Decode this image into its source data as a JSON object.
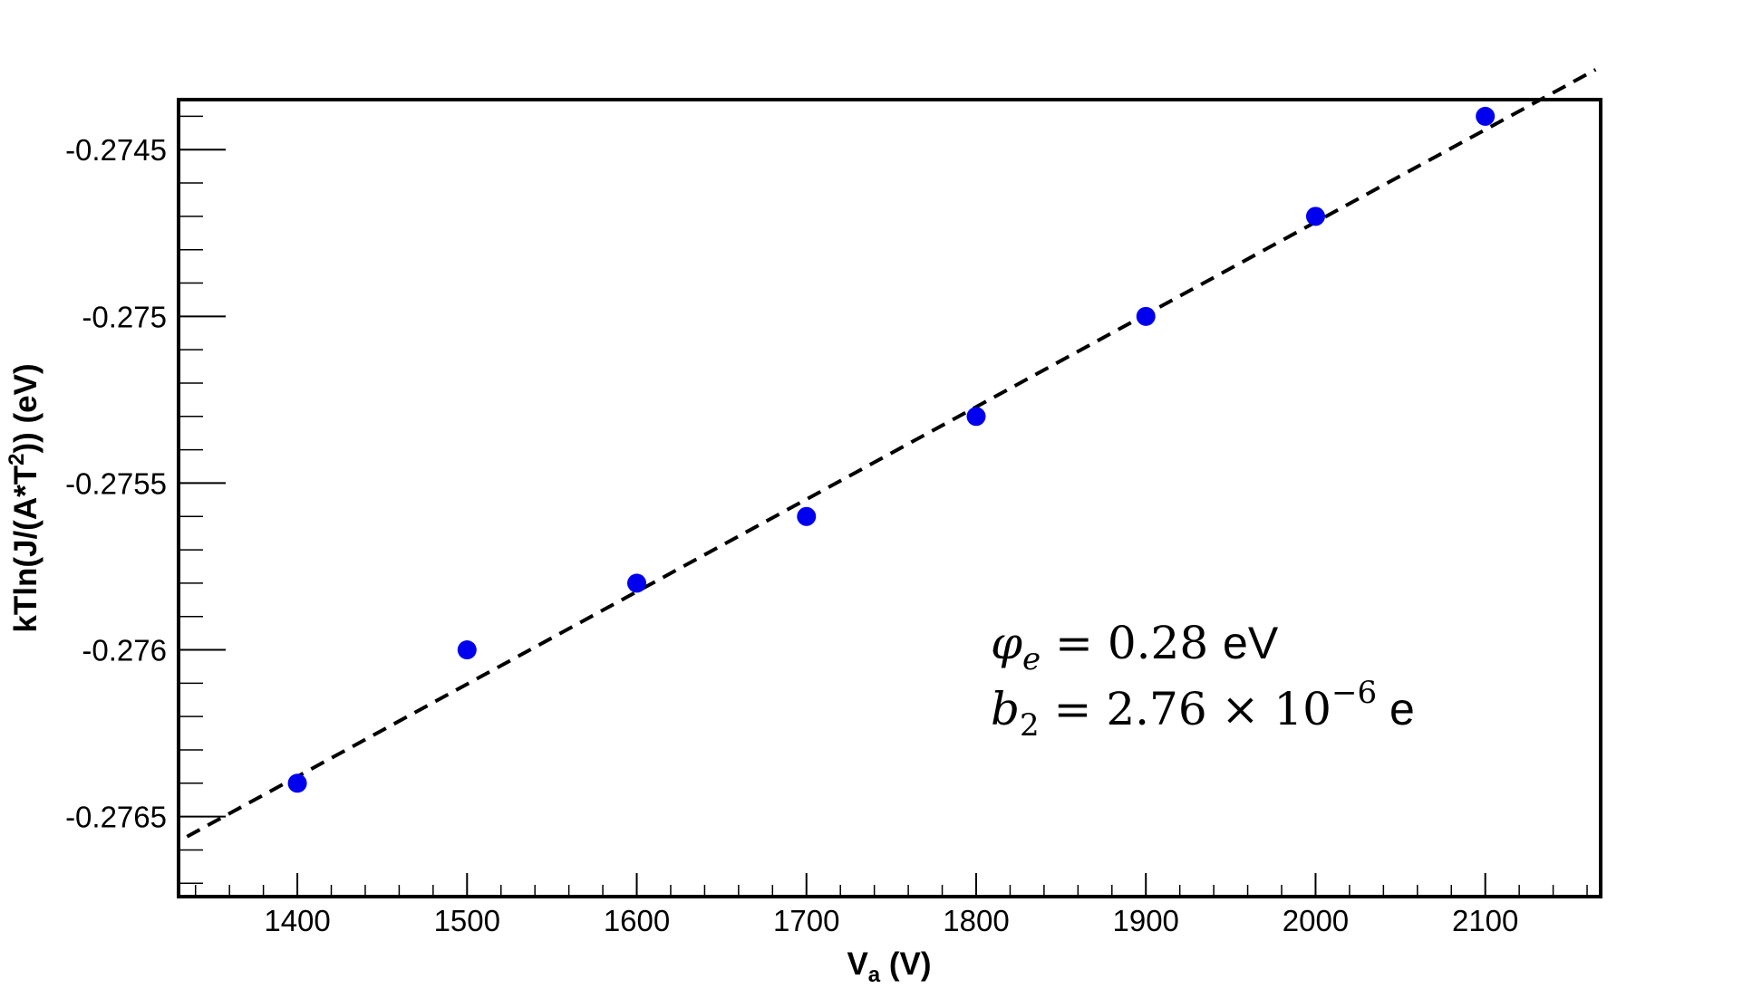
{
  "chart_data": {
    "type": "scatter",
    "title": "",
    "xlabel": "V",
    "xlabel_sub": "a",
    "xlabel_unit": " (V)",
    "ylabel": "kTln(J/(A*T",
    "ylabel_sup": "2",
    "ylabel_unit": ")) (eV)",
    "xlim": [
      1330,
      2168
    ],
    "ylim": [
      -0.27674,
      -0.27435
    ],
    "x_ticks": [
      1400,
      1500,
      1600,
      1700,
      1800,
      1900,
      2000,
      2100
    ],
    "y_ticks": [
      -0.2765,
      -0.276,
      -0.2755,
      -0.275,
      -0.2745
    ],
    "y_tick_labels": [
      "-0.2765",
      "-0.276",
      "-0.2755",
      "-0.275",
      "-0.2745"
    ],
    "grid": false,
    "series": [
      {
        "color": "#0000ee",
        "marker": "circle",
        "x": [
          1400,
          1500,
          1600,
          1700,
          1800,
          1900,
          2000,
          2100
        ],
        "y": [
          -0.2764,
          -0.276,
          -0.2758,
          -0.2756,
          -0.2753,
          -0.275,
          -0.2747,
          -0.2744
        ]
      }
    ],
    "fit_line": {
      "color": "#000000",
      "style": "dashed",
      "x": [
        1335,
        2165
      ],
      "y": [
        -0.27656,
        -0.27426
      ]
    },
    "annotations": {
      "phi_symbol": "φ",
      "phi_sub": "e",
      "phi_eq": " = 0.28 ",
      "phi_unit": "eV",
      "b_symbol": "b",
      "b_sub": "2",
      "b_eq": " = 2.76 × 10",
      "b_exp": "−6",
      "b_unit": " e"
    }
  }
}
